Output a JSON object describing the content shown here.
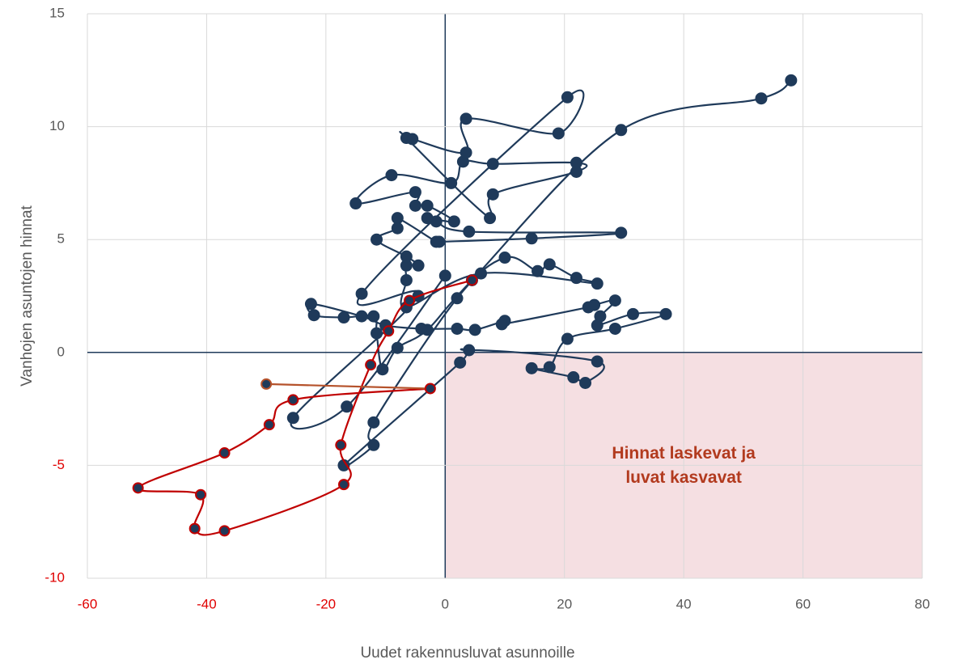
{
  "chart_data": {
    "type": "scatter",
    "xlabel": "Uudet rakennusluvat asunnoille",
    "ylabel": "Vanhojen asuntojen hinnat",
    "xlim": [
      -60,
      80
    ],
    "xticks": [
      -60,
      -40,
      -20,
      0,
      20,
      40,
      60,
      80
    ],
    "ylim": [
      -10,
      15
    ],
    "yticks": [
      -10,
      -5,
      0,
      5,
      10,
      15
    ],
    "grid": true,
    "negative_tick_color": "#e00000",
    "shaded_region": {
      "xlim": [
        0,
        80
      ],
      "ylim": [
        -10,
        0
      ],
      "color": "#f5dfe2"
    },
    "annotation": {
      "lines": [
        "Hinnat laskevat ja",
        "luvat kasvavat"
      ],
      "x": 40,
      "y": -5,
      "color": "#b23a1e"
    },
    "series": [
      {
        "color": "#1f3a5a",
        "marker_fill": "#1f3a5a",
        "marker_stroke": "#1f3a5a",
        "x": [
          58,
          53,
          29.5,
          4.5,
          -3,
          -8,
          -10.5,
          -11.5,
          -12,
          -17,
          -22,
          -22.5,
          -14,
          -10,
          -4,
          2,
          5,
          10,
          9.5,
          24,
          25,
          28.5,
          26,
          25.5,
          31.5,
          37,
          28.5,
          20.5,
          17.5,
          14.5,
          21.5,
          23.5,
          25.5,
          4,
          2.5,
          -17,
          -12,
          -12,
          2,
          10,
          15.5,
          17.5,
          22,
          25.5,
          6,
          -6.5,
          -6.5,
          -6.5,
          -4.5,
          -6.5,
          -11.5,
          -8,
          -8,
          -1.5,
          -1,
          14.5,
          29.5,
          4,
          -1.5,
          -3,
          1.5,
          -3,
          -5,
          -5,
          -15,
          -9,
          1,
          3,
          8,
          22,
          22,
          8,
          7.5,
          -6.5,
          -5.5,
          3.5,
          3.5,
          19,
          20.5,
          -14,
          -4.5,
          -25.5,
          -16.5,
          0
        ],
        "y": [
          12.05,
          11.25,
          9.85,
          3.2,
          1,
          0.2,
          -0.75,
          0.85,
          1.6,
          1.55,
          1.65,
          2.15,
          1.6,
          1.2,
          1.05,
          1.05,
          1,
          1.4,
          1.25,
          2,
          2.1,
          2.3,
          1.6,
          1.2,
          1.7,
          1.7,
          1.05,
          0.6,
          -0.65,
          -0.7,
          -1.1,
          -1.35,
          -0.4,
          0.1,
          -0.45,
          -5,
          -4.1,
          -3.1,
          2.4,
          4.2,
          3.6,
          3.9,
          3.3,
          3.05,
          3.5,
          2,
          3.2,
          3.85,
          3.85,
          4.25,
          5,
          5.5,
          5.95,
          4.9,
          4.9,
          5.05,
          5.3,
          5.35,
          5.8,
          5.95,
          5.8,
          6.5,
          6.5,
          7.1,
          6.6,
          7.85,
          7.5,
          8.45,
          8.35,
          8.4,
          8,
          7,
          5.95,
          9.5,
          9.45,
          8.85,
          10.35,
          9.7,
          11.3,
          2.6,
          2.5,
          -2.9,
          -2.4,
          3.4
        ]
      },
      {
        "color": "#c00000",
        "marker_fill": "#1f3a5a",
        "marker_stroke": "#c00000",
        "last_segment_color": "#b5522b",
        "x": [
          4.5,
          -6,
          -9.5,
          -12.5,
          -17.5,
          -17,
          -37,
          -42,
          -41,
          -51.5,
          -37,
          -29.5,
          -25.5,
          -2.5,
          -30
        ],
        "y": [
          3.2,
          2.3,
          0.95,
          -0.55,
          -4.1,
          -5.85,
          -7.9,
          -7.8,
          -6.3,
          -6,
          -4.45,
          -3.2,
          -2.1,
          -1.6,
          -1.4
        ]
      }
    ]
  }
}
